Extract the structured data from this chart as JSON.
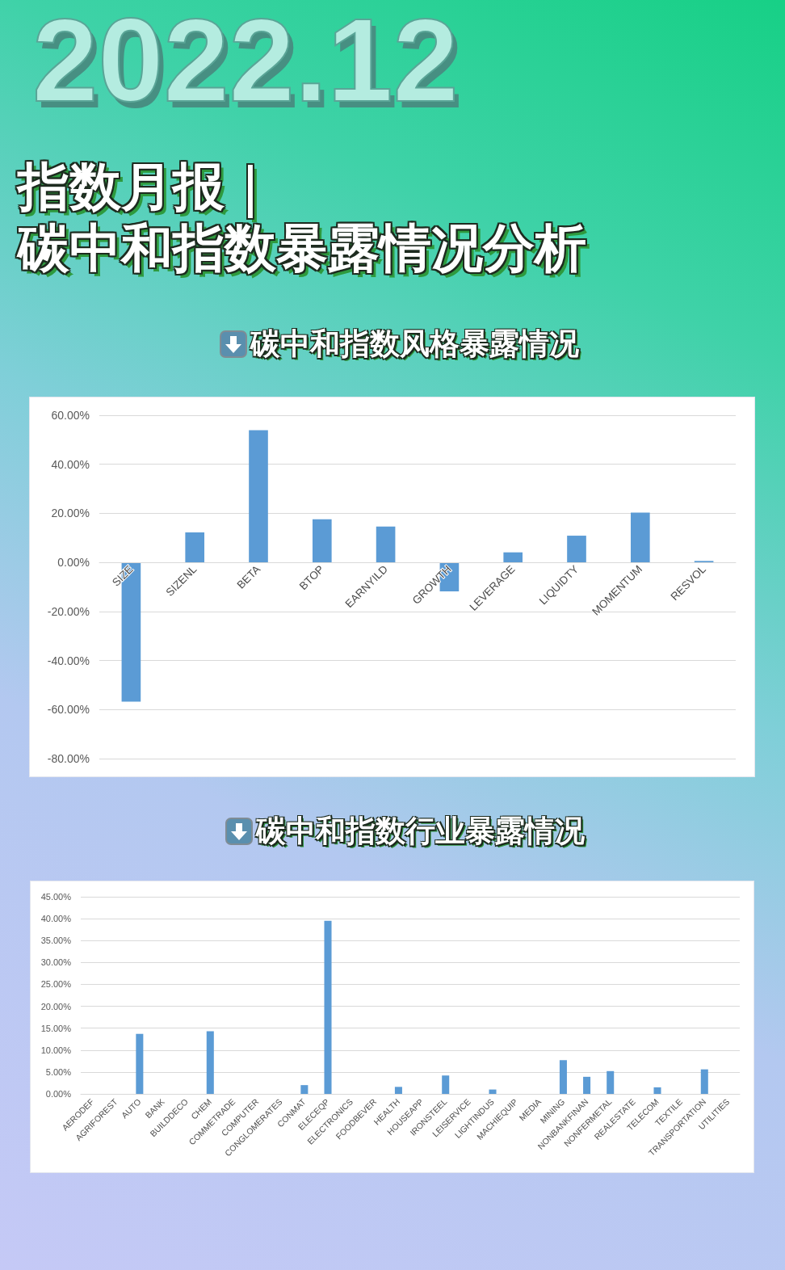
{
  "chart_data": [
    {
      "type": "bar",
      "title": "碳中和指数风格暴露情况",
      "annotations": [
        "2022.12",
        "指数月报｜",
        "碳中和指数暴露情况分析"
      ],
      "categories": [
        "SIZE",
        "SIZENL",
        "BETA",
        "BTOP",
        "EARNYILD",
        "GROWTH",
        "LEVERAGE",
        "LIQUIDTY",
        "MOMENTUM",
        "RESVOL"
      ],
      "values": [
        -56.8,
        12.2,
        53.9,
        17.6,
        14.6,
        -11.8,
        4.1,
        10.9,
        20.3,
        0.6
      ],
      "color": "#5b9bd5",
      "ylim": [
        -80,
        60
      ],
      "yticks": [
        {
          "value": -80,
          "label": "-80.00%"
        },
        {
          "value": -60,
          "label": "-60.00%"
        },
        {
          "value": -40,
          "label": "-40.00%"
        },
        {
          "value": -20,
          "label": "-20.00%"
        },
        {
          "value": 0,
          "label": "0.00%"
        },
        {
          "value": 20,
          "label": "20.00%"
        },
        {
          "value": 40,
          "label": "40.00%"
        },
        {
          "value": 60,
          "label": "60.00%"
        }
      ],
      "grid": "y"
    },
    {
      "type": "bar",
      "title": "碳中和指数行业暴露情况",
      "categories": [
        "AERODEF",
        "AGRIFOREST",
        "AUTO",
        "BANK",
        "BUILDDECO",
        "CHEM",
        "COMMETRADE",
        "COMPUTER",
        "CONGLOMERATES",
        "CONMAT",
        "ELECEQP",
        "ELECTRONICS",
        "FOODBEVER",
        "HEALTH",
        "HOUSEAPP",
        "IRONSTEEL",
        "LEISERVICE",
        "LIGHTINDUS",
        "MACHIEQUIP",
        "MEDIA",
        "MINING",
        "NONBANKFINAN",
        "NONFERMETAL",
        "REALESTATE",
        "TELECOM",
        "TEXTILE",
        "TRANSPORTATION",
        "UTILITIES"
      ],
      "values": [
        0,
        0,
        13.7,
        0,
        0,
        14.3,
        0,
        0,
        0,
        2.0,
        39.5,
        0,
        0,
        1.6,
        0,
        4.2,
        0,
        1.0,
        0,
        0,
        7.7,
        3.9,
        5.2,
        0,
        1.5,
        0,
        5.6,
        0
      ],
      "color": "#5b9bd5",
      "ylim": [
        0,
        45
      ],
      "yticks": [
        {
          "value": 0,
          "label": "0.00%"
        },
        {
          "value": 5,
          "label": "5.00%"
        },
        {
          "value": 10,
          "label": "10.00%"
        },
        {
          "value": 15,
          "label": "15.00%"
        },
        {
          "value": 20,
          "label": "20.00%"
        },
        {
          "value": 25,
          "label": "25.00%"
        },
        {
          "value": 30,
          "label": "30.00%"
        },
        {
          "value": 35,
          "label": "35.00%"
        },
        {
          "value": 40,
          "label": "40.00%"
        },
        {
          "value": 45,
          "label": "45.00%"
        }
      ],
      "grid": "y"
    }
  ]
}
